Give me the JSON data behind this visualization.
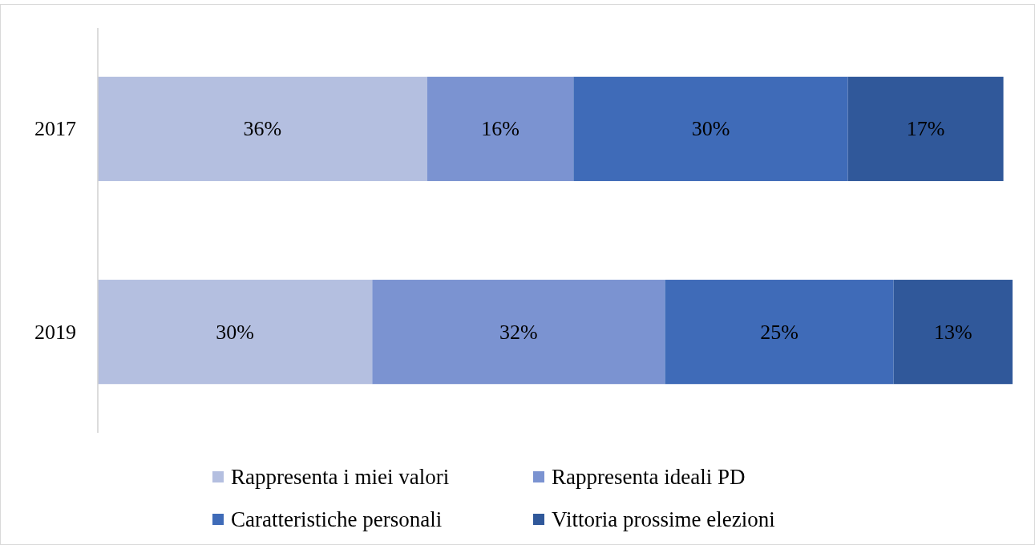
{
  "chart_data": {
    "type": "bar",
    "orientation": "horizontal",
    "stacked": true,
    "legend": "bottom",
    "categories": [
      "2017",
      "2019"
    ],
    "series": [
      {
        "name": "Rappresenta i miei valori",
        "color": "#b4bfe0",
        "values": [
          36,
          30
        ],
        "value_labels": [
          "36%",
          "30%"
        ]
      },
      {
        "name": "Rappresenta ideali PD",
        "color": "#7b93d1",
        "values": [
          16,
          32
        ],
        "value_labels": [
          "16%",
          "32%"
        ]
      },
      {
        "name": "Caratteristiche personali",
        "color": "#3f6bb8",
        "values": [
          30,
          25
        ],
        "value_labels": [
          "30%",
          "25%"
        ]
      },
      {
        "name": "Vittoria prossime elezioni",
        "color": "#30589a",
        "values": [
          17,
          13
        ],
        "value_labels": [
          "17%",
          "13%"
        ]
      }
    ]
  }
}
